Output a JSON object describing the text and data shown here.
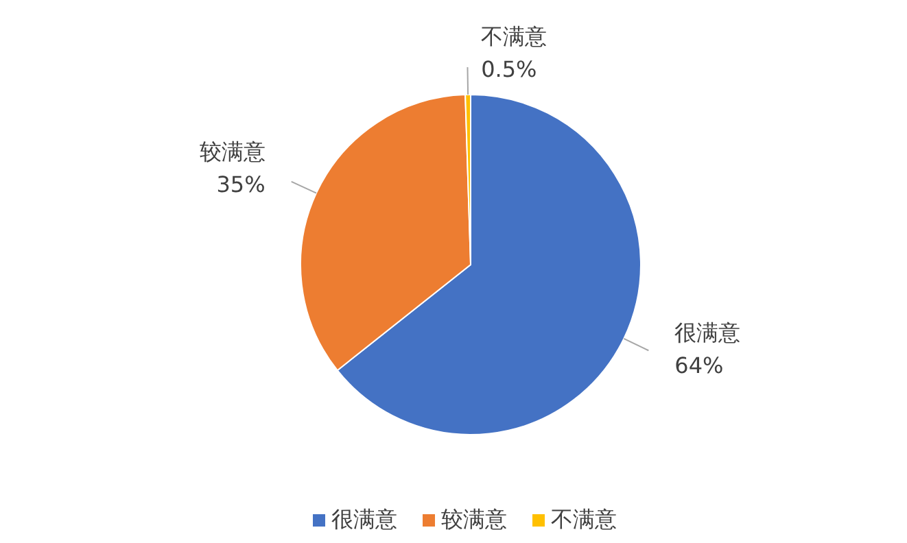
{
  "chart_data": {
    "type": "pie",
    "categories": [
      "很满意",
      "较满意",
      "不满意"
    ],
    "values": [
      64,
      35,
      0.5
    ],
    "value_labels": [
      "64%",
      "35%",
      "0.5%"
    ],
    "colors": [
      "#4472c4",
      "#ed7d31",
      "#ffc000"
    ],
    "legend": "bottom"
  }
}
